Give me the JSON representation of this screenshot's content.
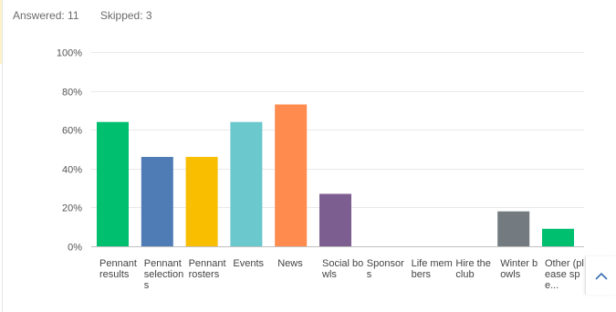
{
  "summary": {
    "answered": "Answered: 11",
    "skipped": "Skipped: 3"
  },
  "chart_data": {
    "type": "bar",
    "categories": [
      "Pennant results",
      "Pennant selections",
      "Pennant rosters",
      "Events",
      "News",
      "Social bowls",
      "Sponsors",
      "Life members",
      "Hire the club",
      "Winter bowls",
      "Other (please spe..."
    ],
    "values": [
      64,
      46,
      46,
      64,
      73,
      27,
      0,
      0,
      0,
      18,
      9
    ],
    "colors": [
      "#00bf6f",
      "#507cb6",
      "#f9be00",
      "#6bc8cd",
      "#ff8b4f",
      "#7d5e90",
      "#d25f90",
      "#c68c5c",
      "#a7a8ab",
      "#737b80",
      "#00bf6f"
    ],
    "ylim": [
      0,
      100
    ],
    "yticks": [
      "0%",
      "20%",
      "40%",
      "60%",
      "80%",
      "100%"
    ],
    "grid": true,
    "title": "",
    "xlabel": "",
    "ylabel": ""
  },
  "scroll_top": {
    "icon": "chevron-up-icon"
  }
}
